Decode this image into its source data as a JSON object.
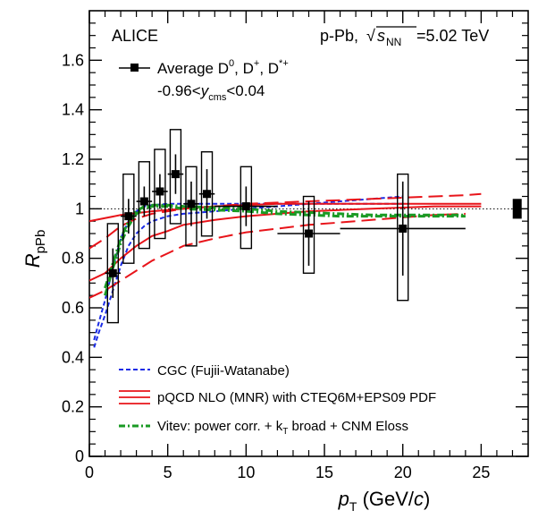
{
  "chart_data": {
    "type": "scatter",
    "experiment_label": "ALICE",
    "system_label": {
      "pre": "p-Pb, ",
      "sqrt_symbol": "√",
      "s": "s",
      "sub": "NN",
      "post": "=5.02 TeV"
    },
    "xlabel": {
      "p": "p",
      "sub": "T",
      "rest": " (GeV/",
      "c": "c",
      "close": ")"
    },
    "ylabel": {
      "R": "R",
      "sub": "pPb"
    },
    "xlim": [
      0,
      28
    ],
    "ylim": [
      0,
      1.8
    ],
    "x_ticks": [
      0,
      5,
      10,
      15,
      20,
      25
    ],
    "y_ticks": [
      0,
      0.2,
      0.4,
      0.6,
      0.8,
      1,
      1.2,
      1.4,
      1.6
    ],
    "x_tick_labels": [
      "0",
      "5",
      "10",
      "15",
      "20",
      "25"
    ],
    "y_tick_labels": [
      "0",
      "0.2",
      "0.4",
      "0.6",
      "0.8",
      "1",
      "1.2",
      "1.4",
      "1.6"
    ],
    "reference_line": 1.0,
    "data_legend": {
      "label": "Average D",
      "sup0": "0",
      "sep1": ", D",
      "supplus": "+",
      "sep2": ", D",
      "supstar": "*+",
      "rapidity_pre": "-0.96<",
      "rapidity_y": "y",
      "rapidity_sub": "cms",
      "rapidity_post": "<0.04"
    },
    "series": [
      {
        "name": "Average D0, D+, D*+",
        "color": "#000000",
        "points": [
          {
            "x": 1.5,
            "y": 0.74,
            "xerr": 0.5,
            "stat": 0.1,
            "syst_lo": 0.2,
            "syst_hi": 0.2
          },
          {
            "x": 2.5,
            "y": 0.97,
            "xerr": 0.5,
            "stat": 0.07,
            "syst_lo": 0.19,
            "syst_hi": 0.17
          },
          {
            "x": 3.5,
            "y": 1.03,
            "xerr": 0.5,
            "stat": 0.06,
            "syst_lo": 0.19,
            "syst_hi": 0.16
          },
          {
            "x": 4.5,
            "y": 1.07,
            "xerr": 0.5,
            "stat": 0.07,
            "syst_lo": 0.19,
            "syst_hi": 0.17
          },
          {
            "x": 5.5,
            "y": 1.14,
            "xerr": 0.5,
            "stat": 0.08,
            "syst_lo": 0.2,
            "syst_hi": 0.18
          },
          {
            "x": 6.5,
            "y": 1.02,
            "xerr": 0.5,
            "stat": 0.09,
            "syst_lo": 0.17,
            "syst_hi": 0.15
          },
          {
            "x": 7.5,
            "y": 1.06,
            "xerr": 0.5,
            "stat": 0.1,
            "syst_lo": 0.17,
            "syst_hi": 0.17
          },
          {
            "x": 10.0,
            "y": 1.01,
            "xerr": 2.0,
            "stat": 0.08,
            "syst_lo": 0.17,
            "syst_hi": 0.16
          },
          {
            "x": 14.0,
            "y": 0.9,
            "xerr": 2.0,
            "stat": 0.13,
            "syst_lo": 0.16,
            "syst_hi": 0.15
          },
          {
            "x": 20.0,
            "y": 0.92,
            "xerr": 4.0,
            "stat": 0.19,
            "syst_lo": 0.29,
            "syst_hi": 0.22
          }
        ]
      }
    ],
    "normalization_box": {
      "x": 27.3,
      "y": 1.0,
      "half_height": 0.04
    },
    "models": [
      {
        "name": "CGC (Fujii-Watanabe)",
        "color": "#1a2be6",
        "style": "dashed",
        "curves": [
          [
            [
              0.3,
              0.44
            ],
            [
              0.6,
              0.5
            ],
            [
              1.0,
              0.57
            ],
            [
              1.5,
              0.67
            ],
            [
              2.0,
              0.77
            ],
            [
              2.5,
              0.85
            ],
            [
              3.0,
              0.9
            ],
            [
              3.5,
              0.93
            ],
            [
              4.0,
              0.95
            ],
            [
              5.0,
              0.97
            ],
            [
              6.0,
              0.98
            ],
            [
              8.0,
              0.99
            ],
            [
              10.0,
              1.0
            ],
            [
              12.0,
              1.01
            ],
            [
              14.0,
              1.02
            ],
            [
              16.0,
              1.03
            ],
            [
              18.0,
              1.04
            ],
            [
              20.0,
              1.05
            ]
          ],
          [
            [
              0.3,
              0.47
            ],
            [
              0.6,
              0.54
            ],
            [
              1.0,
              0.63
            ],
            [
              1.5,
              0.76
            ],
            [
              2.0,
              0.88
            ],
            [
              2.5,
              0.95
            ],
            [
              3.0,
              0.99
            ],
            [
              3.5,
              1.01
            ],
            [
              4.0,
              1.015
            ],
            [
              5.0,
              1.02
            ],
            [
              6.0,
              1.02
            ],
            [
              8.0,
              1.02
            ],
            [
              10.0,
              1.02
            ],
            [
              12.0,
              1.02
            ],
            [
              14.0,
              1.02
            ],
            [
              16.0,
              1.02
            ],
            [
              18.0,
              1.02
            ],
            [
              20.0,
              1.02
            ]
          ]
        ]
      },
      {
        "name": "pQCD NLO (MNR) with CTEQ6M+EPS09 PDF",
        "color": "#e8141a",
        "style": "mixed",
        "curves": [
          {
            "style": "long-dashed",
            "points": [
              [
                0,
                0.64
              ],
              [
                1,
                0.67
              ],
              [
                2,
                0.71
              ],
              [
                3,
                0.75
              ],
              [
                4,
                0.79
              ],
              [
                5,
                0.82
              ],
              [
                6,
                0.85
              ],
              [
                8,
                0.88
              ],
              [
                10,
                0.905
              ],
              [
                12,
                0.92
              ],
              [
                14,
                0.935
              ],
              [
                16,
                0.945
              ],
              [
                18,
                0.955
              ],
              [
                20,
                0.965
              ],
              [
                22,
                0.975
              ],
              [
                24,
                0.98
              ]
            ]
          },
          {
            "style": "solid",
            "points": [
              [
                0,
                0.71
              ],
              [
                1,
                0.74
              ],
              [
                2,
                0.8
              ],
              [
                3,
                0.85
              ],
              [
                4,
                0.89
              ],
              [
                5,
                0.91
              ],
              [
                6,
                0.935
              ],
              [
                8,
                0.955
              ],
              [
                10,
                0.97
              ],
              [
                12,
                0.98
              ],
              [
                14,
                0.99
              ],
              [
                16,
                0.995
              ],
              [
                18,
                1.0
              ],
              [
                20,
                1.005
              ],
              [
                22,
                1.01
              ],
              [
                24,
                1.01
              ],
              [
                25,
                1.01
              ]
            ]
          },
          {
            "style": "solid",
            "points": [
              [
                0,
                0.95
              ],
              [
                2,
                0.975
              ],
              [
                4,
                0.99
              ],
              [
                6,
                1.0
              ],
              [
                8,
                1.01
              ],
              [
                10,
                1.015
              ],
              [
                12,
                1.02
              ],
              [
                14,
                1.02
              ],
              [
                16,
                1.02
              ],
              [
                18,
                1.02
              ],
              [
                20,
                1.02
              ],
              [
                22,
                1.02
              ],
              [
                24,
                1.02
              ],
              [
                25,
                1.02
              ]
            ]
          },
          {
            "style": "long-dashed",
            "points": [
              [
                0,
                0.84
              ],
              [
                1,
                0.88
              ],
              [
                2,
                0.93
              ],
              [
                3,
                0.96
              ],
              [
                4,
                0.98
              ],
              [
                5,
                0.99
              ],
              [
                6,
                1.0
              ],
              [
                8,
                1.01
              ],
              [
                10,
                1.02
              ],
              [
                12,
                1.025
              ],
              [
                14,
                1.03
              ],
              [
                16,
                1.035
              ],
              [
                18,
                1.04
              ],
              [
                20,
                1.045
              ],
              [
                22,
                1.05
              ],
              [
                24,
                1.055
              ],
              [
                25,
                1.06
              ]
            ]
          }
        ]
      },
      {
        "name": "Vitev: power corr. + kT broad + CNM Eloss",
        "color": "#1a9a24",
        "style": "dash-dot",
        "curves": [
          [
            [
              1.0,
              0.65
            ],
            [
              1.5,
              0.76
            ],
            [
              2.0,
              0.86
            ],
            [
              2.5,
              0.93
            ],
            [
              3.0,
              0.98
            ],
            [
              3.5,
              1.0
            ],
            [
              4.0,
              1.01
            ],
            [
              5.0,
              1.01
            ],
            [
              6.0,
              1.0
            ],
            [
              8.0,
              0.995
            ],
            [
              10.0,
              0.99
            ],
            [
              12.0,
              0.98
            ],
            [
              14.0,
              0.975
            ],
            [
              16.0,
              0.97
            ],
            [
              18.0,
              0.97
            ],
            [
              20.0,
              0.97
            ],
            [
              22.0,
              0.97
            ],
            [
              24.0,
              0.97
            ]
          ],
          [
            [
              1.0,
              0.68
            ],
            [
              1.5,
              0.78
            ],
            [
              2.0,
              0.88
            ],
            [
              2.5,
              0.95
            ],
            [
              3.0,
              0.99
            ],
            [
              3.5,
              1.01
            ],
            [
              4.0,
              1.015
            ],
            [
              5.0,
              1.015
            ],
            [
              6.0,
              1.01
            ],
            [
              8.0,
              1.005
            ],
            [
              10.0,
              1.0
            ],
            [
              12.0,
              0.99
            ],
            [
              14.0,
              0.985
            ],
            [
              16.0,
              0.98
            ],
            [
              18.0,
              0.975
            ],
            [
              20.0,
              0.975
            ],
            [
              22.0,
              0.975
            ],
            [
              24.0,
              0.975
            ]
          ]
        ]
      }
    ],
    "model_legend": [
      {
        "label": "CGC (Fujii-Watanabe)"
      },
      {
        "label": "pQCD NLO (MNR) with CTEQ6M+EPS09 PDF"
      },
      {
        "label_pre": "Vitev: power corr. + k",
        "label_sub": "T",
        "label_post": " broad + CNM Eloss"
      }
    ],
    "grid": false,
    "legend_placement": "top-left and bottom-left"
  }
}
